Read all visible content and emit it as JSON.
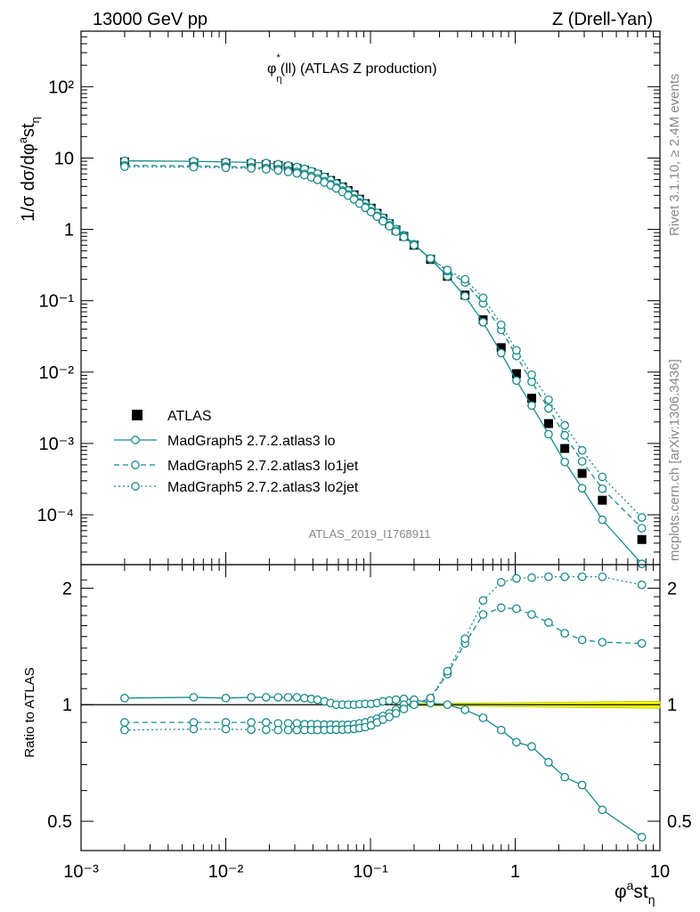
{
  "header": {
    "energy_label": "13000 GeV pp",
    "process_label": "Z (Drell-Yan)"
  },
  "side_text": {
    "rivet": "Rivet 3.1.10, ≥ 2.4M events",
    "source": "mcplots.cern.ch [arXiv:1306.3436]"
  },
  "chart_data": [
    {
      "type": "line",
      "panel": "main",
      "title": "φ*η(ll) (ATLAS Z production)",
      "watermark": "ATLAS_2019_I1768911",
      "ylabel": "1/σ dσ/dφ*η",
      "xscale": "log",
      "yscale": "log",
      "xlim": [
        0.001,
        10
      ],
      "ylim": [
        2e-05,
        600
      ],
      "x_tick_labels": [
        "10⁻³",
        "10⁻²",
        "10⁻¹",
        "1",
        "10"
      ],
      "y_tick_labels": [
        "10⁻⁴",
        "10⁻³",
        "10⁻²",
        "10⁻¹",
        "1",
        "10",
        "10²"
      ],
      "legend_position": "bottom-left",
      "x": [
        0.002,
        0.006,
        0.01,
        0.015,
        0.019,
        0.023,
        0.027,
        0.031,
        0.035,
        0.039,
        0.043,
        0.048,
        0.053,
        0.058,
        0.064,
        0.07,
        0.077,
        0.084,
        0.092,
        0.101,
        0.111,
        0.122,
        0.135,
        0.15,
        0.17,
        0.2,
        0.26,
        0.34,
        0.45,
        0.6,
        0.8,
        1.02,
        1.3,
        1.7,
        2.2,
        2.9,
        4.0,
        7.5
      ],
      "series": [
        {
          "name": "ATLAS",
          "style": "square",
          "color": "#000000",
          "values": [
            8.8,
            8.6,
            8.45,
            8.3,
            8.1,
            7.85,
            7.5,
            7.15,
            6.75,
            6.3,
            5.85,
            5.35,
            4.85,
            4.4,
            3.95,
            3.5,
            3.05,
            2.65,
            2.3,
            1.98,
            1.68,
            1.42,
            1.2,
            0.98,
            0.8,
            0.6,
            0.38,
            0.22,
            0.12,
            0.054,
            0.022,
            0.0095,
            0.0043,
            0.0019,
            0.00085,
            0.00038,
            0.00016,
            4.5e-05
          ]
        },
        {
          "name": "MadGraph5 2.7.2.atlas3 lo",
          "style": "solid",
          "color": "#1a8a8a",
          "values": [
            9.15,
            9.0,
            8.8,
            8.7,
            8.5,
            8.2,
            7.85,
            7.5,
            7.05,
            6.55,
            6.05,
            5.45,
            4.9,
            4.4,
            3.95,
            3.5,
            3.05,
            2.66,
            2.31,
            1.99,
            1.7,
            1.45,
            1.23,
            1.01,
            0.83,
            0.62,
            0.385,
            0.22,
            0.116,
            0.05,
            0.0185,
            0.0076,
            0.0034,
            0.00135,
            0.00055,
            0.000235,
            8.5e-05,
            2.05e-05
          ]
        },
        {
          "name": "MadGraph5 2.7.2.atlas3 lo1jet",
          "style": "dashed",
          "color": "#1a8a8a",
          "values": [
            7.9,
            7.75,
            7.6,
            7.45,
            7.25,
            7.0,
            6.7,
            6.4,
            6.0,
            5.6,
            5.2,
            4.75,
            4.3,
            3.9,
            3.5,
            3.1,
            2.72,
            2.38,
            2.08,
            1.8,
            1.55,
            1.33,
            1.14,
            0.95,
            0.8,
            0.6,
            0.39,
            0.26,
            0.18,
            0.092,
            0.039,
            0.0168,
            0.0073,
            0.0031,
            0.0013,
            0.00056,
            0.000232,
            6.48e-05
          ]
        },
        {
          "name": "MadGraph5 2.7.2.atlas3 lo2jet",
          "style": "dotted",
          "color": "#1a8a8a",
          "values": [
            7.55,
            7.45,
            7.3,
            7.15,
            6.95,
            6.7,
            6.4,
            6.1,
            5.75,
            5.35,
            4.95,
            4.55,
            4.15,
            3.75,
            3.35,
            2.98,
            2.63,
            2.3,
            2.01,
            1.75,
            1.51,
            1.3,
            1.11,
            0.93,
            0.78,
            0.6,
            0.39,
            0.27,
            0.2,
            0.11,
            0.046,
            0.0202,
            0.0092,
            0.0041,
            0.00179,
            0.0008,
            0.00034,
            9.18e-05
          ]
        }
      ]
    },
    {
      "type": "line",
      "panel": "ratio",
      "ylabel": "Ratio to ATLAS",
      "xlabel": "φᵃstη",
      "xscale": "log",
      "xlim": [
        0.001,
        10
      ],
      "ylim": [
        0.42,
        2.3
      ],
      "y_tick_labels": [
        "0.5",
        "1",
        "2"
      ],
      "reference_band": {
        "color": "#ffff00",
        "edge_color": "#a0c800"
      },
      "x": [
        0.002,
        0.006,
        0.01,
        0.015,
        0.019,
        0.023,
        0.027,
        0.031,
        0.035,
        0.039,
        0.043,
        0.048,
        0.053,
        0.058,
        0.064,
        0.07,
        0.077,
        0.084,
        0.092,
        0.101,
        0.111,
        0.122,
        0.135,
        0.15,
        0.17,
        0.2,
        0.26,
        0.34,
        0.45,
        0.6,
        0.8,
        1.02,
        1.3,
        1.7,
        2.2,
        2.9,
        4.0,
        7.5
      ],
      "series": [
        {
          "name": "MadGraph5 2.7.2.atlas3 lo",
          "style": "solid",
          "color": "#1a8a8a",
          "values": [
            1.04,
            1.045,
            1.04,
            1.045,
            1.045,
            1.045,
            1.045,
            1.045,
            1.04,
            1.035,
            1.03,
            1.02,
            1.01,
            1.0,
            1.0,
            1.0,
            1.0,
            1.003,
            1.005,
            1.005,
            1.01,
            1.02,
            1.025,
            1.03,
            1.035,
            1.03,
            1.01,
            1.0,
            0.97,
            0.925,
            0.86,
            0.8,
            0.78,
            0.71,
            0.65,
            0.62,
            0.535,
            0.455
          ]
        },
        {
          "name": "MadGraph5 2.7.2.atlas3 lo1jet",
          "style": "dashed",
          "color": "#1a8a8a",
          "values": [
            0.9,
            0.9,
            0.9,
            0.9,
            0.9,
            0.895,
            0.895,
            0.895,
            0.89,
            0.89,
            0.89,
            0.888,
            0.888,
            0.887,
            0.887,
            0.887,
            0.89,
            0.895,
            0.9,
            0.91,
            0.92,
            0.935,
            0.95,
            0.97,
            1.0,
            1.0,
            1.04,
            1.2,
            1.44,
            1.71,
            1.78,
            1.77,
            1.71,
            1.63,
            1.53,
            1.47,
            1.45,
            1.44
          ]
        },
        {
          "name": "MadGraph5 2.7.2.atlas3 lo2jet",
          "style": "dotted",
          "color": "#1a8a8a",
          "values": [
            0.86,
            0.865,
            0.865,
            0.862,
            0.862,
            0.86,
            0.86,
            0.86,
            0.86,
            0.86,
            0.86,
            0.86,
            0.862,
            0.862,
            0.862,
            0.864,
            0.866,
            0.87,
            0.875,
            0.884,
            0.9,
            0.915,
            0.93,
            0.95,
            0.975,
            1.0,
            1.04,
            1.22,
            1.48,
            1.86,
            2.07,
            2.12,
            2.13,
            2.14,
            2.14,
            2.14,
            2.14,
            2.04
          ]
        }
      ]
    }
  ]
}
